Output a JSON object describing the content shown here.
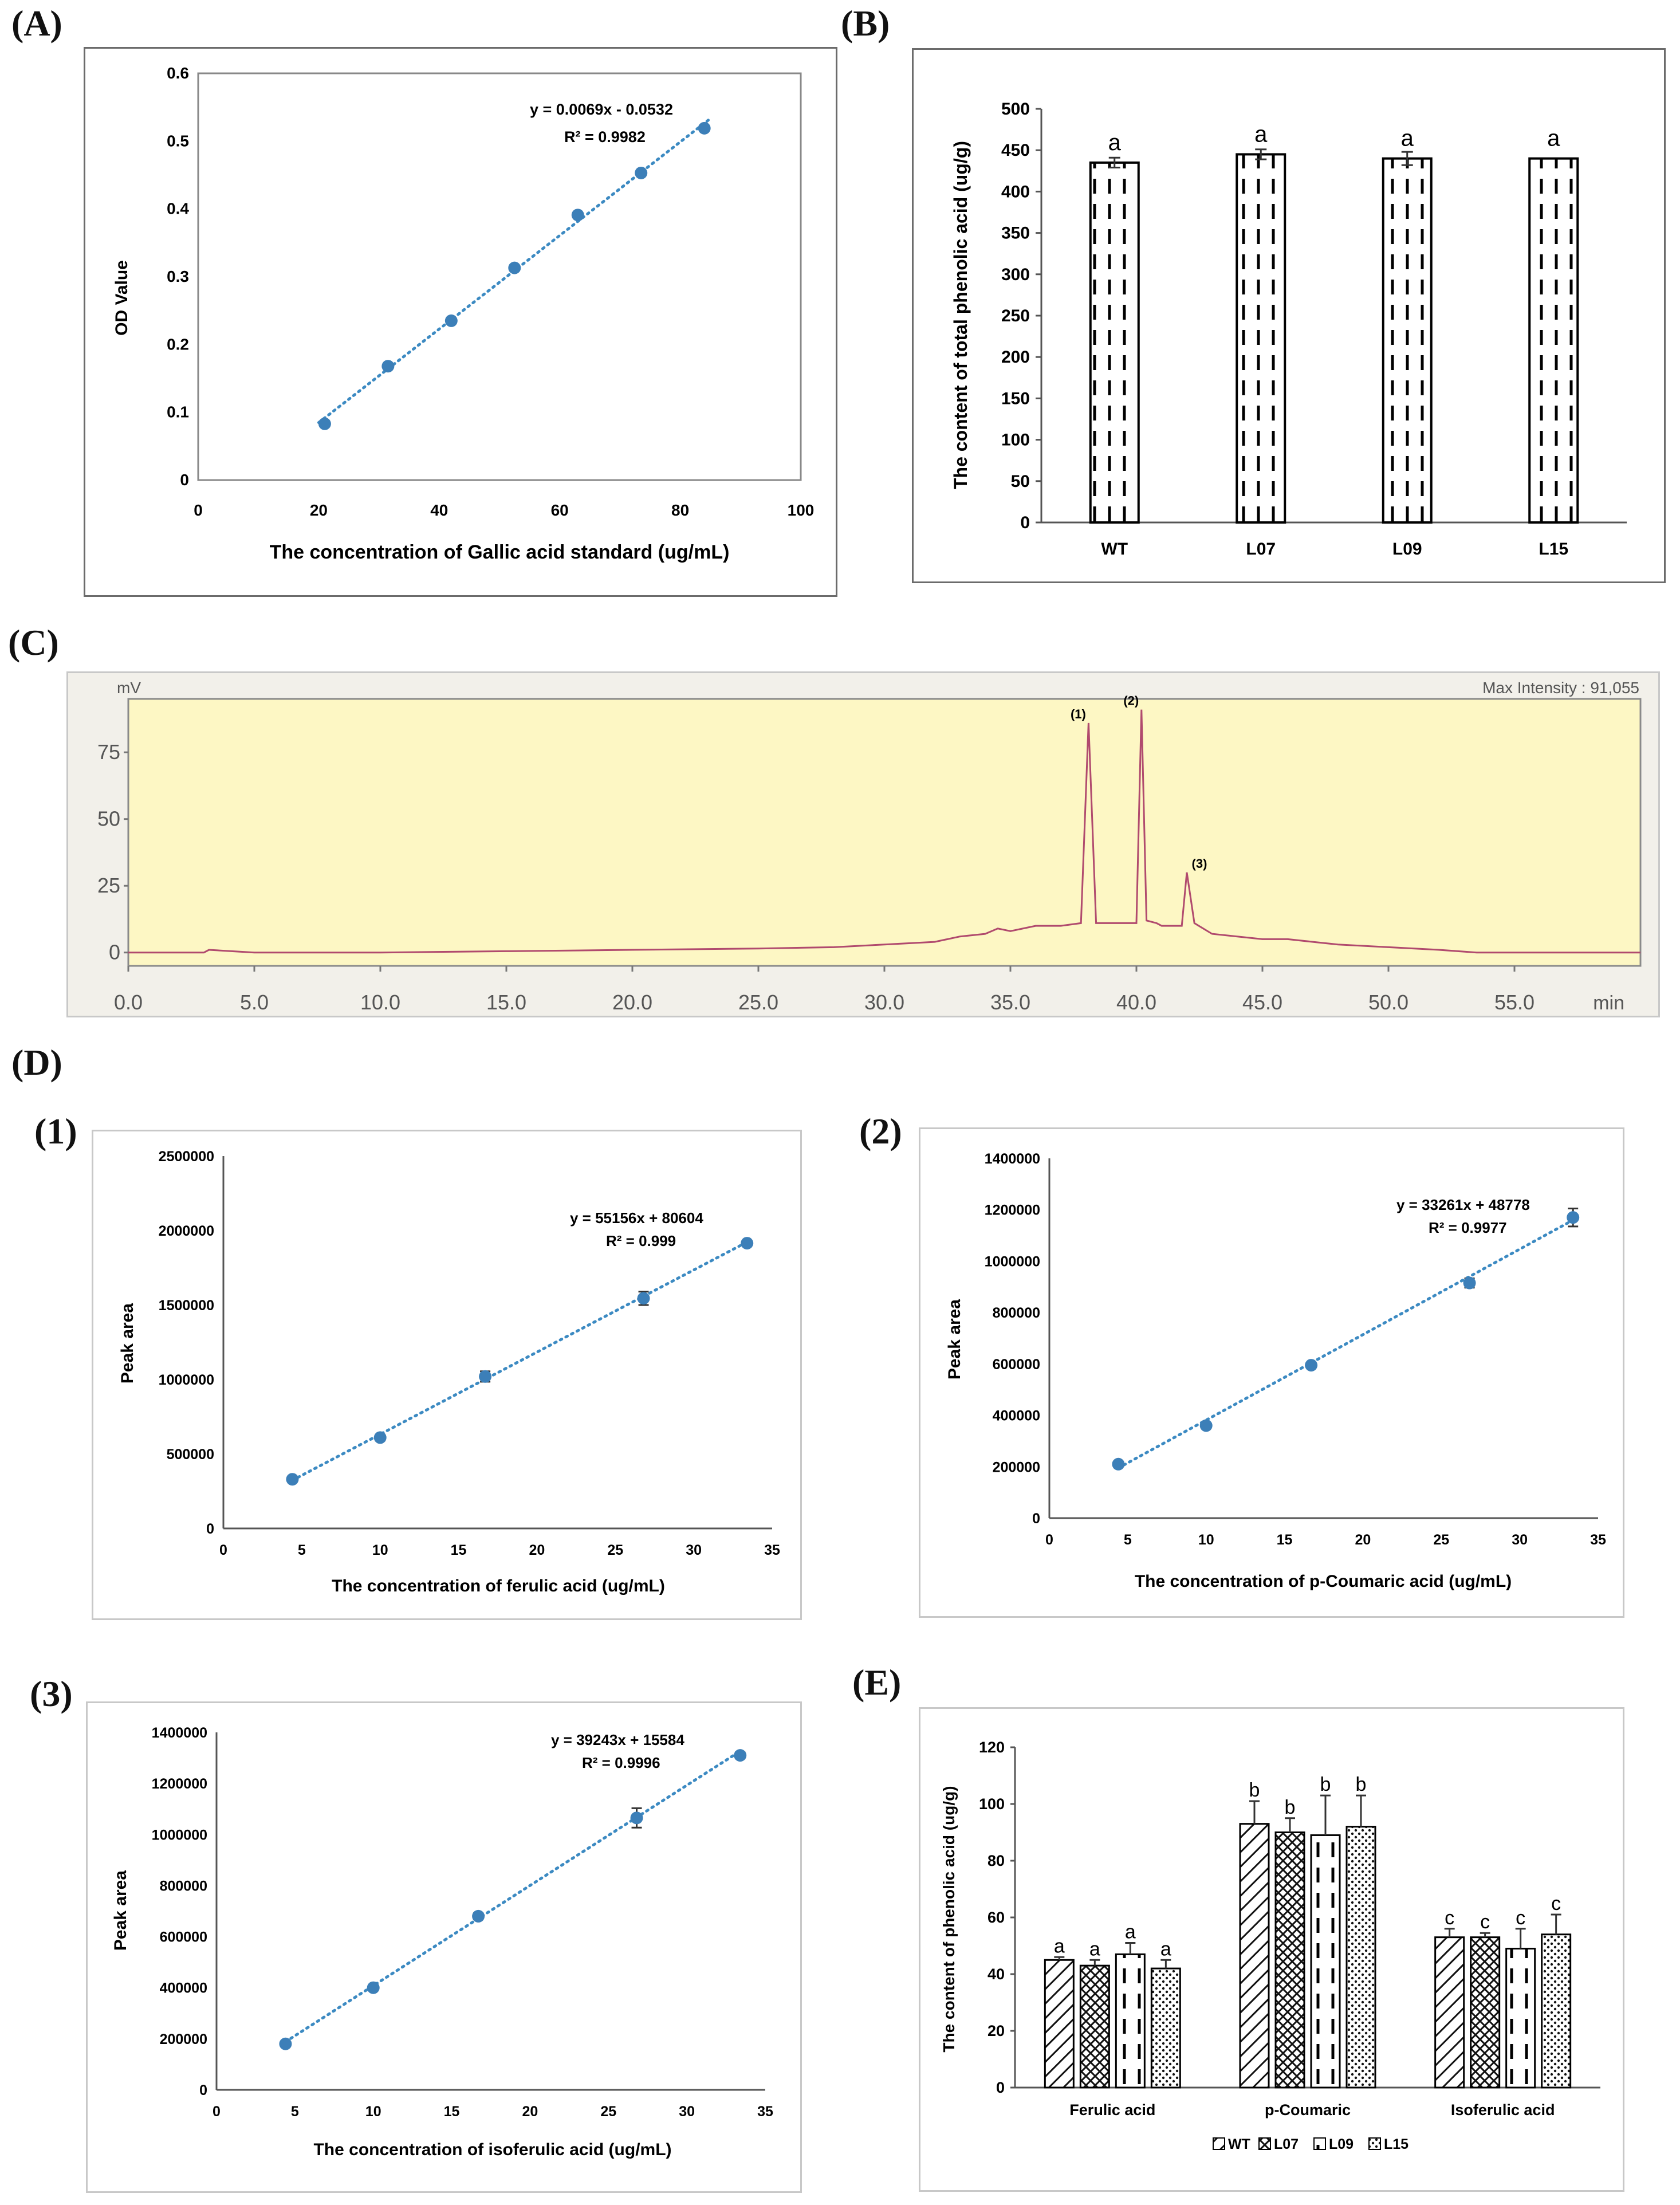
{
  "panel_labels": {
    "A": "(A)",
    "B": "(B)",
    "C": "(C)",
    "D": "(D)",
    "D1": "(1)",
    "D2": "(2)",
    "D3": "(3)",
    "E": "(E)"
  },
  "chart_data": [
    {
      "id": "A",
      "type": "scatter",
      "title": "",
      "xlabel": "The concentration of Gallic acid standard (ug/mL)",
      "ylabel": "OD Value",
      "xlim": [
        0,
        100
      ],
      "ylim": [
        0,
        0.6
      ],
      "xticks": [
        "0",
        "20",
        "40",
        "60",
        "80",
        "100"
      ],
      "yticks": [
        "0",
        "0.1",
        "0.2",
        "0.3",
        "0.4",
        "0.5",
        "0.6"
      ],
      "x": [
        21,
        31.5,
        42,
        52.5,
        63,
        73.5,
        84
      ],
      "y": [
        0.083,
        0.168,
        0.235,
        0.313,
        0.391,
        0.453,
        0.519
      ],
      "equation": "y = 0.0069x - 0.0532",
      "r2": "R² = 0.9982",
      "trendline": {
        "slope": 0.0069,
        "intercept": -0.0532,
        "x_range": [
          20,
          85
        ]
      }
    },
    {
      "id": "B",
      "type": "bar",
      "ylabel": "The content of total phenolic acid (ug/g)",
      "ylim": [
        0,
        500
      ],
      "yticks": [
        "0",
        "50",
        "100",
        "150",
        "200",
        "250",
        "300",
        "350",
        "400",
        "450",
        "500"
      ],
      "categories": [
        "WT",
        "L07",
        "L09",
        "L15"
      ],
      "values": [
        435,
        445,
        440,
        440
      ],
      "errors": [
        6,
        6,
        8,
        0
      ],
      "letters": [
        "a",
        "a",
        "a",
        "a"
      ]
    },
    {
      "id": "C",
      "type": "line",
      "ylabel": "mV",
      "xlabel": "min",
      "max_intensity": "Max Intensity : 91,055",
      "xlim": [
        0,
        60
      ],
      "ylim": [
        -5,
        95
      ],
      "xticks": [
        "0.0",
        "5.0",
        "10.0",
        "15.0",
        "20.0",
        "25.0",
        "30.0",
        "35.0",
        "40.0",
        "45.0",
        "50.0",
        "55.0"
      ],
      "yticks": [
        "0",
        "25",
        "50",
        "75"
      ],
      "x": [
        0,
        3,
        3.2,
        5,
        10,
        15,
        20,
        25,
        28,
        30,
        32,
        33,
        34,
        34.5,
        35,
        36,
        37,
        37.8,
        38.1,
        38.4,
        39,
        40,
        40.2,
        40.4,
        40.8,
        41,
        41.8,
        42,
        42.3,
        43,
        44,
        45,
        46,
        47,
        48,
        50,
        52,
        53.5,
        55,
        60
      ],
      "y": [
        0,
        0,
        1,
        0,
        0,
        0.5,
        1,
        1.5,
        2,
        3,
        4,
        6,
        7,
        9,
        8,
        10,
        10,
        11,
        86,
        11,
        11,
        11,
        91,
        12,
        11,
        10,
        10,
        30,
        11,
        7,
        6,
        5,
        5,
        4,
        3,
        2,
        1,
        0,
        0,
        0
      ],
      "peaks": [
        {
          "label": "(1)",
          "x": 38.1,
          "y": 86
        },
        {
          "label": "(2)",
          "x": 40.2,
          "y": 91
        },
        {
          "label": "(3)",
          "x": 42.0,
          "y": 30
        }
      ]
    },
    {
      "id": "D1",
      "type": "scatter",
      "xlabel": "The concentration of ferulic acid (ug/mL)",
      "ylabel": "Peak area",
      "xlim": [
        0,
        35
      ],
      "ylim": [
        0,
        2500000
      ],
      "xticks": [
        "0",
        "5",
        "10",
        "15",
        "20",
        "25",
        "30",
        "35"
      ],
      "yticks": [
        "0",
        "500000",
        "1000000",
        "1500000",
        "2000000",
        "2500000"
      ],
      "x": [
        4.4,
        10,
        16.7,
        26.8,
        33.4
      ],
      "y": [
        330000,
        610000,
        1020000,
        1545000,
        1915000
      ],
      "errors": [
        15000,
        20000,
        35000,
        45000,
        15000
      ],
      "equation": "y = 55156x + 80604",
      "r2": "R² = 0.999",
      "trendline": {
        "slope": 55156,
        "intercept": 80604,
        "x_range": [
          4.4,
          33.4
        ]
      }
    },
    {
      "id": "D2",
      "type": "scatter",
      "xlabel": "The concentration of p-Coumaric acid (ug/mL)",
      "ylabel": "Peak area",
      "xlim": [
        0,
        35
      ],
      "ylim": [
        0,
        1400000
      ],
      "xticks": [
        "0",
        "5",
        "10",
        "15",
        "20",
        "25",
        "30",
        "35"
      ],
      "yticks": [
        "0",
        "200000",
        "400000",
        "600000",
        "800000",
        "1000000",
        "1200000",
        "1400000"
      ],
      "x": [
        4.4,
        10,
        16.7,
        26.8,
        33.4
      ],
      "y": [
        210000,
        360000,
        595000,
        915000,
        1170000
      ],
      "errors": [
        8000,
        8000,
        10000,
        18000,
        35000
      ],
      "equation": "y = 33261x + 48778",
      "r2": "R² = 0.9977",
      "trendline": {
        "slope": 33261,
        "intercept": 48778,
        "x_range": [
          4.4,
          33.4
        ]
      }
    },
    {
      "id": "D3",
      "type": "scatter",
      "xlabel": "The concentration of isoferulic acid (ug/mL)",
      "ylabel": "Peak area",
      "xlim": [
        0,
        35
      ],
      "ylim": [
        0,
        1400000
      ],
      "xticks": [
        "0",
        "5",
        "10",
        "15",
        "20",
        "25",
        "30",
        "35"
      ],
      "yticks": [
        "0",
        "200000",
        "400000",
        "600000",
        "800000",
        "1000000",
        "1200000",
        "1400000"
      ],
      "x": [
        4.4,
        10,
        16.7,
        26.8,
        33.4
      ],
      "y": [
        180000,
        400000,
        680000,
        1065000,
        1310000
      ],
      "errors": [
        8000,
        10000,
        12000,
        38000,
        12000
      ],
      "equation": "y = 39243x + 15584",
      "r2": "R² = 0.9996",
      "trendline": {
        "slope": 39243,
        "intercept": 15584,
        "x_range": [
          4.4,
          33.4
        ]
      }
    },
    {
      "id": "E",
      "type": "bar",
      "ylabel": "The content of phenolic acid (ug/g)",
      "ylim": [
        0,
        120
      ],
      "yticks": [
        "0",
        "20",
        "40",
        "60",
        "80",
        "100",
        "120"
      ],
      "categories": [
        "Ferulic acid",
        "p-Coumaric",
        "Isoferulic acid"
      ],
      "series": [
        {
          "name": "WT",
          "values": [
            45,
            93,
            53
          ],
          "errors": [
            1,
            8,
            3
          ],
          "letters": [
            "a",
            "b",
            "c"
          ]
        },
        {
          "name": "L07",
          "values": [
            43,
            90,
            53
          ],
          "errors": [
            2,
            5,
            1.5
          ],
          "letters": [
            "a",
            "b",
            "c"
          ]
        },
        {
          "name": "L09",
          "values": [
            47,
            89,
            49
          ],
          "errors": [
            4,
            14,
            7
          ],
          "letters": [
            "a",
            "b",
            "c"
          ]
        },
        {
          "name": "L15",
          "values": [
            42,
            92,
            54
          ],
          "errors": [
            3,
            11,
            7
          ],
          "letters": [
            "a",
            "b",
            "c"
          ]
        }
      ]
    }
  ]
}
